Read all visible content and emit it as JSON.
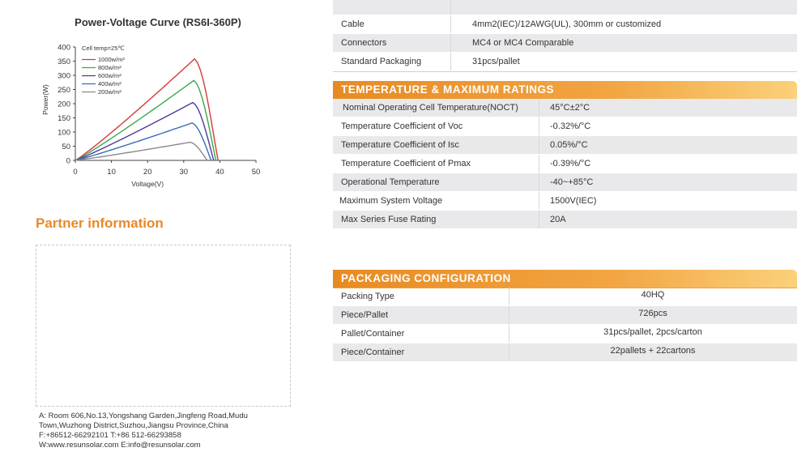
{
  "chart": {
    "title": "Power-Voltage Curve (RS6I-360P)",
    "cell_temp": "Cell temp=25℃",
    "xlabel": "Voltage(V)",
    "ylabel": "Power(W)"
  },
  "chart_data": {
    "type": "line",
    "title": "Power-Voltage Curve (RS6I-360P)",
    "xlabel": "Voltage(V)",
    "ylabel": "Power(W)",
    "xlim": [
      0,
      50
    ],
    "ylim": [
      0,
      400
    ],
    "xticks": [
      "0",
      "10",
      "20",
      "30",
      "40",
      "50"
    ],
    "yticks": [
      "0",
      "50",
      "100",
      "150",
      "200",
      "250",
      "300",
      "350",
      "400"
    ],
    "annotation": "Cell temp=25℃",
    "legend_position": "top-left",
    "series": [
      {
        "name": "1000w/m²",
        "color": "#d23a3a",
        "peak_v": 33.0,
        "peak_p": 358,
        "voc": 39.5
      },
      {
        "name": "800w/m²",
        "color": "#3aa84a",
        "peak_v": 32.8,
        "peak_p": 282,
        "voc": 38.9
      },
      {
        "name": "600w/m²",
        "color": "#4a3a9a",
        "peak_v": 32.5,
        "peak_p": 204,
        "voc": 38.3
      },
      {
        "name": "400w/m²",
        "color": "#3a6ab8",
        "peak_v": 32.3,
        "peak_p": 132,
        "voc": 37.6
      },
      {
        "name": "200w/m²",
        "color": "#8a8a8a",
        "peak_v": 31.8,
        "peak_p": 64,
        "voc": 36.5
      }
    ]
  },
  "partner": {
    "title": "Partner information",
    "address_line1": "A: Room 606,No.13,Yongshang Garden,Jingfeng Road,Mudu",
    "address_line2": "Town,Wuzhong District,Suzhou,Jiangsu Province,China",
    "phone": "F:+86512-66292101  T:+86 512-66293858",
    "web": "W:www.resunsolar.com  E:info@resunsolar.com"
  },
  "top_table": [
    {
      "key": "Cable",
      "value": "4mm2(IEC)/12AWG(UL), 300mm or customized"
    },
    {
      "key": "Connectors",
      "value": "MC4 or MC4 Comparable"
    },
    {
      "key": "Standard Packaging",
      "value": "31pcs/pallet"
    }
  ],
  "temperature": {
    "header": "TEMPERATURE & MAXIMUM RATINGS",
    "rows": [
      {
        "key": "Nominal Operating Cell Temperature(NOCT)",
        "value": "45°C±2°C"
      },
      {
        "key": "Temperature Coefficient of Voc",
        "value": "-0.32%/°C"
      },
      {
        "key": "Temperature Coefficient of Isc",
        "value": "0.05%/°C"
      },
      {
        "key": "Temperature Coefficient of Pmax",
        "value": "-0.39%/°C"
      },
      {
        "key": "Operational Temperature",
        "value": "-40~+85°C"
      },
      {
        "key": "Maximum System Voltage",
        "value": "1500V(IEC)"
      },
      {
        "key": "Max Series Fuse Rating",
        "value": "20A"
      }
    ]
  },
  "packaging": {
    "header": "PACKAGING CONFIGURATION",
    "rows": [
      {
        "key": "Packing Type",
        "value": "40HQ"
      },
      {
        "key": "Piece/Pallet",
        "value": "726pcs"
      },
      {
        "key": "Pallet/Container",
        "value": "31pcs/pallet, 2pcs/carton"
      },
      {
        "key": "Piece/Container",
        "value": "22pallets + 22cartons"
      }
    ]
  }
}
